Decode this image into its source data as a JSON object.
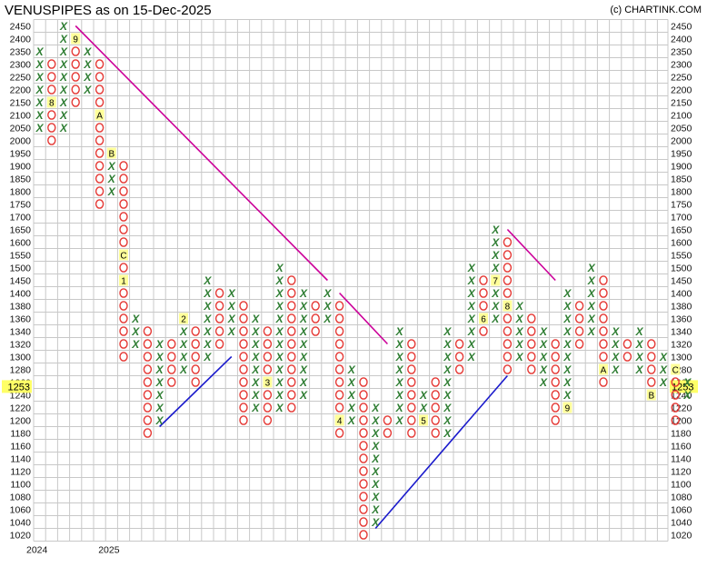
{
  "chart_data": {
    "type": "point-and-figure",
    "title": "VENUSPIPES as on 15-Dec-2025",
    "credit": "(c) CHARTINK.COM",
    "price_levels": [
      2450,
      2400,
      2350,
      2300,
      2250,
      2200,
      2150,
      2100,
      2050,
      2000,
      1950,
      1900,
      1850,
      1800,
      1750,
      1700,
      1650,
      1600,
      1550,
      1500,
      1450,
      1400,
      1380,
      1360,
      1340,
      1320,
      1300,
      1280,
      1260,
      1240,
      1220,
      1200,
      1180,
      1160,
      1140,
      1120,
      1100,
      1080,
      1060,
      1040,
      1020
    ],
    "current_price": "1253",
    "year_labels": [
      {
        "label": "2024",
        "column": 0
      },
      {
        "label": "2025",
        "column": 6
      }
    ],
    "colors": {
      "x": "#2e7d32",
      "o": "#e53935",
      "grid": "#c8c8c8",
      "price_highlight": "#ffff66",
      "month_marker": "#ffff99",
      "downtrend": "#cc0099",
      "uptrend": "#1a1acc"
    },
    "columns": [
      {
        "type": "X",
        "high": 2350,
        "low": 2050,
        "markers": []
      },
      {
        "type": "O",
        "high": 2300,
        "low": 2000,
        "markers": [
          {
            "price": 2150,
            "label": "8"
          }
        ]
      },
      {
        "type": "X",
        "high": 2450,
        "low": 2050,
        "markers": []
      },
      {
        "type": "O",
        "high": 2400,
        "low": 2150,
        "markers": [
          {
            "price": 2400,
            "label": "9"
          }
        ]
      },
      {
        "type": "X",
        "high": 2350,
        "low": 2200,
        "markers": []
      },
      {
        "type": "O",
        "high": 2300,
        "low": 1750,
        "markers": [
          {
            "price": 2100,
            "label": "A"
          }
        ]
      },
      {
        "type": "X",
        "high": 1950,
        "low": 1800,
        "markers": [
          {
            "price": 1950,
            "label": "B"
          }
        ]
      },
      {
        "type": "O",
        "high": 1900,
        "low": 1300,
        "markers": [
          {
            "price": 1550,
            "label": "C"
          },
          {
            "price": 1450,
            "label": "1"
          }
        ]
      },
      {
        "type": "X",
        "high": 1360,
        "low": 1320,
        "markers": []
      },
      {
        "type": "O",
        "high": 1340,
        "low": 1180,
        "markers": []
      },
      {
        "type": "X",
        "high": 1320,
        "low": 1200,
        "markers": []
      },
      {
        "type": "O",
        "high": 1320,
        "low": 1260,
        "markers": []
      },
      {
        "type": "X",
        "high": 1360,
        "low": 1280,
        "markers": [
          {
            "price": 1360,
            "label": "2"
          }
        ]
      },
      {
        "type": "O",
        "high": 1340,
        "low": 1260,
        "markers": []
      },
      {
        "type": "X",
        "high": 1450,
        "low": 1300,
        "markers": []
      },
      {
        "type": "O",
        "high": 1400,
        "low": 1320,
        "markers": []
      },
      {
        "type": "X",
        "high": 1400,
        "low": 1340,
        "markers": []
      },
      {
        "type": "O",
        "high": 1380,
        "low": 1200,
        "markers": []
      },
      {
        "type": "X",
        "high": 1360,
        "low": 1220,
        "markers": []
      },
      {
        "type": "O",
        "high": 1340,
        "low": 1200,
        "markers": [
          {
            "price": 1260,
            "label": "3"
          }
        ]
      },
      {
        "type": "X",
        "high": 1500,
        "low": 1220,
        "markers": []
      },
      {
        "type": "O",
        "high": 1450,
        "low": 1220,
        "markers": []
      },
      {
        "type": "X",
        "high": 1400,
        "low": 1240,
        "markers": []
      },
      {
        "type": "O",
        "high": 1380,
        "low": 1340,
        "markers": []
      },
      {
        "type": "X",
        "high": 1400,
        "low": 1360,
        "markers": []
      },
      {
        "type": "O",
        "high": 1380,
        "low": 1180,
        "markers": [
          {
            "price": 1200,
            "label": "4"
          }
        ]
      },
      {
        "type": "X",
        "high": 1280,
        "low": 1200,
        "markers": []
      },
      {
        "type": "O",
        "high": 1260,
        "low": 1020,
        "markers": []
      },
      {
        "type": "X",
        "high": 1220,
        "low": 1040,
        "markers": []
      },
      {
        "type": "O",
        "high": 1200,
        "low": 1180,
        "markers": []
      },
      {
        "type": "X",
        "high": 1340,
        "low": 1200,
        "markers": []
      },
      {
        "type": "O",
        "high": 1320,
        "low": 1180,
        "markers": []
      },
      {
        "type": "X",
        "high": 1240,
        "low": 1200,
        "markers": [
          {
            "price": 1200,
            "label": "5"
          }
        ]
      },
      {
        "type": "O",
        "high": 1260,
        "low": 1170,
        "markers": []
      },
      {
        "type": "X",
        "high": 1340,
        "low": 1180,
        "markers": []
      },
      {
        "type": "O",
        "high": 1320,
        "low": 1280,
        "markers": []
      },
      {
        "type": "X",
        "high": 1500,
        "low": 1300,
        "markers": []
      },
      {
        "type": "O",
        "high": 1450,
        "low": 1340,
        "markers": [
          {
            "price": 1360,
            "label": "6"
          }
        ]
      },
      {
        "type": "X",
        "high": 1650,
        "low": 1360,
        "markers": [
          {
            "price": 1450,
            "label": "7"
          }
        ]
      },
      {
        "type": "O",
        "high": 1600,
        "low": 1280,
        "markers": [
          {
            "price": 1380,
            "label": "8"
          }
        ]
      },
      {
        "type": "X",
        "high": 1380,
        "low": 1300,
        "markers": []
      },
      {
        "type": "O",
        "high": 1360,
        "low": 1280,
        "markers": []
      },
      {
        "type": "X",
        "high": 1340,
        "low": 1260,
        "markers": []
      },
      {
        "type": "O",
        "high": 1320,
        "low": 1200,
        "markers": []
      },
      {
        "type": "X",
        "high": 1400,
        "low": 1220,
        "markers": [
          {
            "price": 1220,
            "label": "9"
          }
        ]
      },
      {
        "type": "O",
        "high": 1380,
        "low": 1320,
        "markers": []
      },
      {
        "type": "X",
        "high": 1500,
        "low": 1340,
        "markers": []
      },
      {
        "type": "O",
        "high": 1450,
        "low": 1260,
        "markers": [
          {
            "price": 1280,
            "label": "A"
          }
        ]
      },
      {
        "type": "X",
        "high": 1340,
        "low": 1280,
        "markers": []
      },
      {
        "type": "O",
        "high": 1320,
        "low": 1300,
        "markers": []
      },
      {
        "type": "X",
        "high": 1340,
        "low": 1280,
        "markers": []
      },
      {
        "type": "O",
        "high": 1320,
        "low": 1240,
        "markers": [
          {
            "price": 1240,
            "label": "B"
          }
        ]
      },
      {
        "type": "X",
        "high": 1300,
        "low": 1260,
        "markers": []
      },
      {
        "type": "O",
        "high": 1280,
        "low": 1200,
        "markers": [
          {
            "price": 1280,
            "label": "C"
          }
        ]
      },
      {
        "type": "X",
        "high": 1260,
        "low": 1240,
        "markers": []
      }
    ],
    "trendlines": [
      {
        "kind": "downtrend",
        "from": {
          "column": 3,
          "price": 2450
        },
        "to": {
          "column": 24,
          "price": 1450
        }
      },
      {
        "kind": "downtrend",
        "from": {
          "column": 25,
          "price": 1400
        },
        "to": {
          "column": 29,
          "price": 1320
        }
      },
      {
        "kind": "downtrend",
        "from": {
          "column": 39,
          "price": 1650
        },
        "to": {
          "column": 43,
          "price": 1450
        }
      },
      {
        "kind": "uptrend",
        "from": {
          "column": 10,
          "price": 1190
        },
        "to": {
          "column": 16,
          "price": 1300
        }
      },
      {
        "kind": "uptrend",
        "from": {
          "column": 28,
          "price": 1030
        },
        "to": {
          "column": 39,
          "price": 1270
        }
      }
    ]
  }
}
